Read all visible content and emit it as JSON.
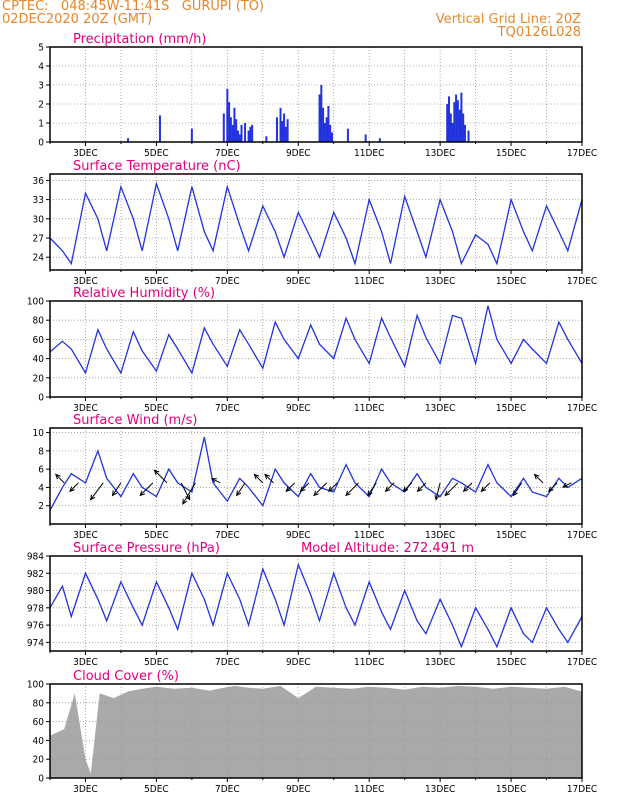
{
  "header": {
    "line1_left": "CPTEC:   048:45W-11:41S   GURUPI (TO)",
    "line2_left": "02DEC2020 20Z (GMT)",
    "line1_right": "Vertical Grid Line: 20Z",
    "line2_right": "TQ0126L028"
  },
  "colors": {
    "header": "#e8862a",
    "title": "#e0007a",
    "series": "#2233dd",
    "cloud": "#a9a9a9"
  },
  "x_axis": {
    "tick_labels": [
      "3DEC",
      "5DEC",
      "7DEC",
      "9DEC",
      "11DEC",
      "13DEC",
      "15DEC",
      "17DEC"
    ],
    "tick_days": [
      3,
      5,
      7,
      9,
      11,
      13,
      15,
      17
    ],
    "start_day": 2.0,
    "end_day": 17.0
  },
  "chart_data": [
    {
      "id": "precip",
      "type": "bar",
      "title": "Precipitation (mm/h)",
      "ylim": [
        0,
        5
      ],
      "yticks": [
        0,
        1,
        2,
        3,
        4,
        5
      ],
      "x": [
        4.2,
        5.1,
        6.0,
        6.9,
        7.0,
        7.05,
        7.1,
        7.15,
        7.2,
        7.25,
        7.3,
        7.35,
        7.4,
        7.5,
        7.6,
        7.65,
        7.7,
        8.1,
        8.4,
        8.5,
        8.55,
        8.6,
        8.65,
        8.7,
        9.6,
        9.65,
        9.7,
        9.75,
        9.8,
        9.85,
        9.9,
        9.95,
        10.4,
        10.9,
        11.3,
        13.2,
        13.25,
        13.3,
        13.35,
        13.4,
        13.45,
        13.5,
        13.55,
        13.6,
        13.65,
        13.7,
        13.8
      ],
      "values": [
        0.2,
        1.4,
        0.7,
        1.5,
        2.8,
        2.1,
        1.3,
        0.9,
        1.8,
        1.2,
        0.6,
        0.4,
        0.9,
        1.0,
        0.6,
        0.8,
        0.9,
        0.3,
        1.3,
        1.8,
        1.1,
        1.5,
        0.8,
        1.2,
        2.5,
        3.0,
        1.8,
        1.0,
        1.3,
        1.9,
        0.9,
        0.5,
        0.7,
        0.4,
        0.2,
        2.0,
        2.4,
        1.5,
        1.0,
        2.1,
        2.5,
        2.2,
        1.7,
        2.6,
        1.5,
        0.9,
        0.6
      ]
    },
    {
      "id": "temp",
      "type": "line",
      "title": "Surface Temperature (nC)",
      "ylim": [
        22,
        37
      ],
      "yticks": [
        24,
        27,
        30,
        33,
        36
      ],
      "x": [
        2.0,
        2.35,
        2.6,
        3.0,
        3.35,
        3.6,
        4.0,
        4.35,
        4.6,
        5.0,
        5.35,
        5.6,
        6.0,
        6.35,
        6.6,
        7.0,
        7.35,
        7.6,
        8.0,
        8.35,
        8.6,
        9.0,
        9.35,
        9.6,
        10.0,
        10.35,
        10.6,
        11.0,
        11.35,
        11.6,
        12.0,
        12.35,
        12.6,
        13.0,
        13.35,
        13.6,
        14.0,
        14.35,
        14.6,
        15.0,
        15.35,
        15.6,
        16.0,
        16.35,
        16.6,
        17.0
      ],
      "values": [
        27,
        25,
        23,
        34,
        30,
        25,
        35,
        30,
        25,
        35.5,
        30,
        25,
        35,
        28,
        25,
        35,
        29,
        25,
        32,
        28,
        24,
        31,
        27,
        24,
        31,
        27,
        23,
        33,
        28,
        23,
        33.5,
        28,
        24,
        33,
        28,
        23,
        27.5,
        26,
        23,
        33,
        28,
        25,
        32,
        28,
        25,
        33
      ]
    },
    {
      "id": "rh",
      "type": "line",
      "title": "Relative Humidity (%)",
      "ylim": [
        0,
        100
      ],
      "yticks": [
        0,
        20,
        40,
        60,
        80,
        100
      ],
      "x": [
        2.0,
        2.35,
        2.6,
        3.0,
        3.35,
        3.6,
        4.0,
        4.35,
        4.6,
        5.0,
        5.35,
        5.6,
        6.0,
        6.35,
        6.6,
        7.0,
        7.35,
        7.6,
        8.0,
        8.35,
        8.6,
        9.0,
        9.35,
        9.6,
        10.0,
        10.35,
        10.6,
        11.0,
        11.35,
        11.6,
        12.0,
        12.35,
        12.6,
        13.0,
        13.35,
        13.6,
        14.0,
        14.35,
        14.6,
        15.0,
        15.35,
        15.6,
        16.0,
        16.35,
        16.6,
        17.0
      ],
      "values": [
        47,
        58,
        50,
        25,
        70,
        50,
        25,
        68,
        48,
        27,
        65,
        50,
        25,
        72,
        55,
        32,
        70,
        55,
        30,
        78,
        60,
        40,
        75,
        55,
        40,
        82,
        60,
        35,
        82,
        62,
        32,
        85,
        62,
        35,
        85,
        82,
        35,
        95,
        60,
        35,
        60,
        50,
        35,
        78,
        60,
        35
      ]
    },
    {
      "id": "wind",
      "type": "line",
      "title": "Surface Wind (m/s)",
      "ylim": [
        0,
        10.5
      ],
      "yticks": [
        2,
        4,
        6,
        8,
        10
      ],
      "x": [
        2.0,
        2.35,
        2.6,
        3.0,
        3.35,
        3.6,
        4.0,
        4.35,
        4.6,
        5.0,
        5.35,
        5.6,
        6.0,
        6.35,
        6.6,
        7.0,
        7.35,
        7.6,
        8.0,
        8.35,
        8.6,
        9.0,
        9.35,
        9.6,
        10.0,
        10.35,
        10.6,
        11.0,
        11.35,
        11.6,
        12.0,
        12.35,
        12.6,
        13.0,
        13.35,
        13.6,
        14.0,
        14.35,
        14.6,
        15.0,
        15.35,
        15.6,
        16.0,
        16.35,
        16.6,
        17.0
      ],
      "values": [
        1.5,
        4.0,
        5.5,
        4.5,
        8.0,
        5.0,
        3.0,
        5.5,
        4.0,
        3.0,
        6.0,
        4.5,
        3.5,
        9.5,
        4.5,
        2.5,
        5.0,
        4.0,
        2.0,
        6.0,
        4.5,
        3.0,
        5.5,
        4.0,
        3.5,
        6.5,
        4.5,
        3.0,
        6.0,
        4.5,
        3.5,
        5.5,
        4.0,
        3.0,
        5.0,
        4.5,
        3.5,
        6.5,
        4.5,
        3.0,
        5.0,
        3.5,
        3.0,
        5.0,
        4.0,
        5.0
      ],
      "arrow_days": [
        2.4,
        2.8,
        3.5,
        4.0,
        4.9,
        5.3,
        5.7,
        6.1,
        6.8,
        7.5,
        8.0,
        8.3,
        8.9,
        9.3,
        9.8,
        10.1,
        10.7,
        11.2,
        11.7,
        12.2,
        12.6,
        13.0,
        13.5,
        13.9,
        14.4,
        15.3,
        15.9,
        16.3,
        16.7
      ],
      "arrow_u": [
        -2,
        -2,
        -3,
        -2,
        -3,
        -3,
        2,
        -3,
        -2,
        -2,
        -2,
        -2,
        -2,
        -2,
        -3,
        -2,
        -3,
        -2,
        -2,
        -2,
        -2,
        -1,
        -3,
        -2,
        -2,
        -2,
        -2,
        -2,
        -2
      ],
      "arrow_v": [
        2,
        -2,
        -4,
        -3,
        -3,
        3,
        -4,
        -5,
        1,
        -3,
        2,
        2,
        -2,
        -2,
        -3,
        -2,
        -3,
        -3,
        -2,
        -2,
        -2,
        -4,
        -3,
        -2,
        -2,
        -3,
        2,
        -2,
        -1
      ]
    },
    {
      "id": "pressure",
      "type": "line",
      "title": "Surface Pressure (hPa)",
      "subtitle": "Model Altitude: 272.491  m",
      "ylim": [
        973,
        984
      ],
      "yticks": [
        974,
        976,
        978,
        980,
        982,
        984
      ],
      "x": [
        2.0,
        2.35,
        2.6,
        3.0,
        3.35,
        3.6,
        4.0,
        4.35,
        4.6,
        5.0,
        5.35,
        5.6,
        6.0,
        6.35,
        6.6,
        7.0,
        7.35,
        7.6,
        8.0,
        8.35,
        8.6,
        9.0,
        9.35,
        9.6,
        10.0,
        10.35,
        10.6,
        11.0,
        11.35,
        11.6,
        12.0,
        12.35,
        12.6,
        13.0,
        13.35,
        13.6,
        14.0,
        14.35,
        14.6,
        15.0,
        15.35,
        15.6,
        16.0,
        16.35,
        16.6,
        17.0
      ],
      "values": [
        978,
        980.5,
        977,
        982,
        979,
        976.5,
        981,
        978,
        976,
        981,
        978,
        975.5,
        982,
        979,
        976,
        982,
        979,
        976,
        982.5,
        979,
        976,
        983,
        979.5,
        976.5,
        982,
        978,
        976,
        981,
        977.5,
        975.5,
        980,
        976.5,
        975,
        979,
        976,
        973.5,
        978,
        975.5,
        973.5,
        978,
        975,
        974,
        978,
        975.5,
        974,
        977
      ]
    },
    {
      "id": "cloud",
      "type": "area",
      "title": "Cloud Cover (%)",
      "ylim": [
        0,
        100
      ],
      "yticks": [
        0,
        20,
        40,
        60,
        80,
        100
      ],
      "x": [
        2.0,
        2.4,
        2.7,
        3.0,
        3.15,
        3.4,
        3.8,
        4.2,
        4.6,
        5.0,
        5.5,
        6.0,
        6.5,
        6.9,
        7.2,
        7.6,
        8.0,
        8.5,
        9.0,
        9.5,
        10.0,
        10.5,
        11.0,
        11.5,
        12.0,
        12.5,
        13.0,
        13.5,
        14.0,
        14.5,
        15.0,
        15.5,
        16.0,
        16.5,
        17.0
      ],
      "values": [
        45,
        52,
        90,
        20,
        5,
        90,
        85,
        92,
        95,
        97,
        95,
        96,
        93,
        96,
        98,
        96,
        95,
        98,
        85,
        97,
        96,
        95,
        97,
        96,
        94,
        97,
        96,
        98,
        97,
        95,
        97,
        96,
        95,
        97,
        92
      ]
    }
  ]
}
